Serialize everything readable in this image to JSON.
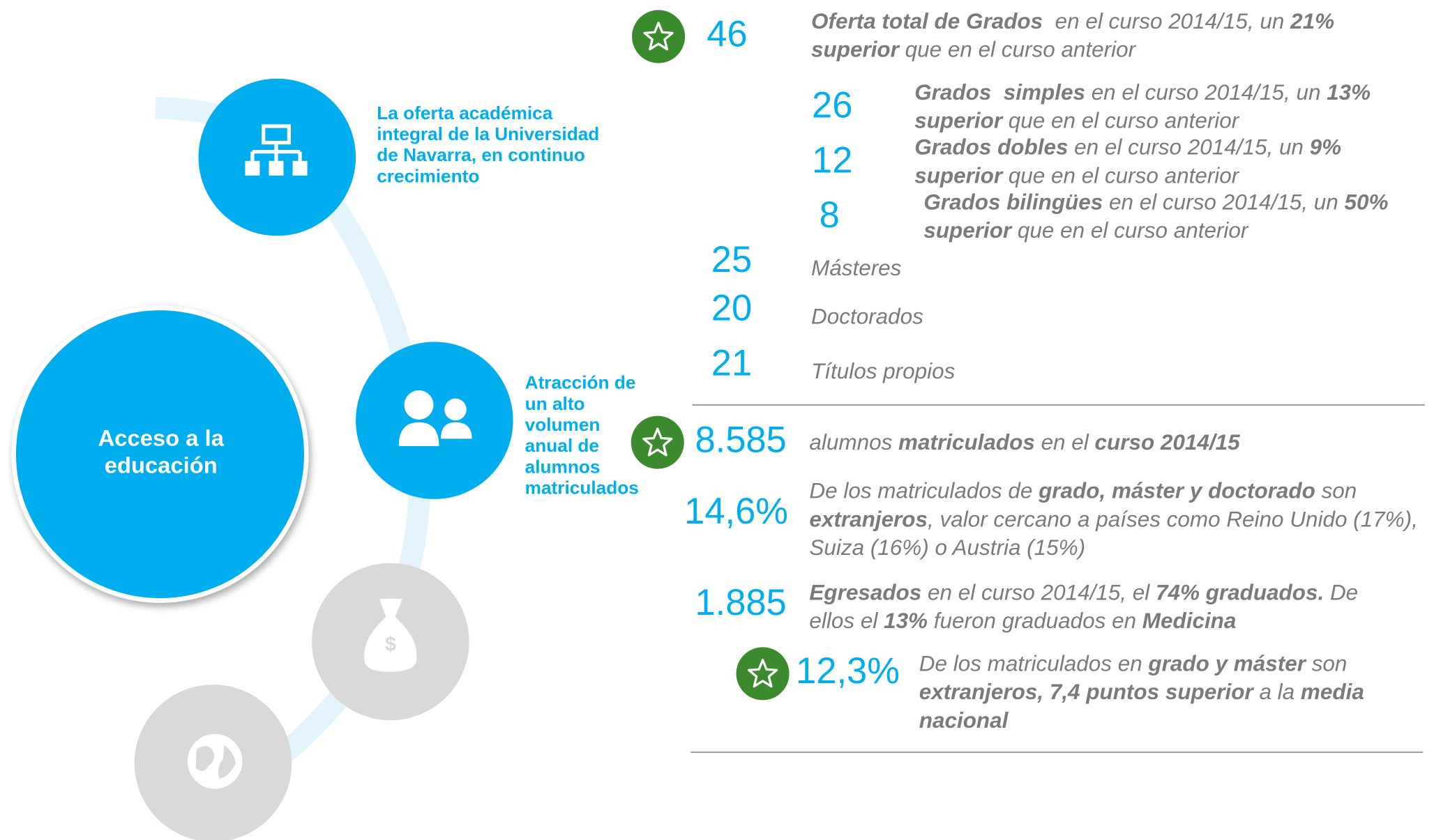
{
  "center": [
    "Acceso a la",
    "educación"
  ],
  "topics": [
    [
      "La oferta académica",
      "integral de la Universidad",
      "de Navarra, en continuo",
      "crecimiento"
    ],
    [
      "Atracción de",
      "un alto",
      "volumen",
      "anual de",
      "alumnos",
      "matriculados"
    ]
  ],
  "stats": [
    {
      "number": "46",
      "star": true,
      "lines": [
        [
          {
            "t": "Oferta total de Grados",
            "b": true
          },
          {
            "t": "  en el curso 2014/15, un ",
            "b": false
          },
          {
            "t": "21%",
            "b": true
          }
        ],
        [
          {
            "t": "superior",
            "b": true
          },
          {
            "t": " que en el curso anterior",
            "b": false
          }
        ]
      ]
    },
    {
      "number": "26",
      "star": false,
      "lines": [
        [
          {
            "t": "Grados  simples",
            "b": true
          },
          {
            "t": " en el curso 2014/15, un ",
            "b": false
          },
          {
            "t": "13%",
            "b": true
          }
        ],
        [
          {
            "t": "superior",
            "b": true
          },
          {
            "t": " que en el curso anterior",
            "b": false
          }
        ]
      ]
    },
    {
      "number": "12",
      "star": false,
      "lines": [
        [
          {
            "t": "Grados dobles",
            "b": true
          },
          {
            "t": " en el curso 2014/15, un ",
            "b": false
          },
          {
            "t": "9%",
            "b": true
          }
        ],
        [
          {
            "t": "superior",
            "b": true
          },
          {
            "t": " que en el curso anterior",
            "b": false
          }
        ]
      ]
    },
    {
      "number": "8",
      "star": false,
      "lines": [
        [
          {
            "t": "Grados bilingües",
            "b": true
          },
          {
            "t": " en el curso 2014/15, un ",
            "b": false
          },
          {
            "t": "50%",
            "b": true
          }
        ],
        [
          {
            "t": "superior",
            "b": true
          },
          {
            "t": " que en el curso anterior",
            "b": false
          }
        ]
      ]
    },
    {
      "number": "25",
      "star": false,
      "lines": [
        [
          {
            "t": "Másteres",
            "b": false
          }
        ]
      ]
    },
    {
      "number": "20",
      "star": false,
      "lines": [
        [
          {
            "t": "Doctorados",
            "b": false
          }
        ]
      ]
    },
    {
      "number": "21",
      "star": false,
      "lines": [
        [
          {
            "t": "Títulos propios",
            "b": false
          }
        ]
      ]
    },
    {
      "number": "8.585",
      "star": true,
      "lines": [
        [
          {
            "t": "alumnos ",
            "b": false
          },
          {
            "t": "matriculados",
            "b": true
          },
          {
            "t": " en el ",
            "b": false
          },
          {
            "t": "curso 2014/15",
            "b": true
          }
        ]
      ]
    },
    {
      "number": "14,6%",
      "star": false,
      "lines": [
        [
          {
            "t": "De los matriculados de ",
            "b": false
          },
          {
            "t": "grado, máster y doctorado",
            "b": true
          },
          {
            "t": " son",
            "b": false
          }
        ],
        [
          {
            "t": "extranjeros",
            "b": true
          },
          {
            "t": ", valor cercano a países como Reino Unido (17%),",
            "b": false
          }
        ],
        [
          {
            "t": "Suiza (16%) o Austria (15%)",
            "b": false
          }
        ]
      ]
    },
    {
      "number": "1.885",
      "star": false,
      "lines": [
        [
          {
            "t": "Egresados",
            "b": true
          },
          {
            "t": " en el curso 2014/15, el ",
            "b": false
          },
          {
            "t": "74% graduados.",
            "b": true
          },
          {
            "t": " De",
            "b": false
          }
        ],
        [
          {
            "t": "ellos el ",
            "b": false
          },
          {
            "t": "13%",
            "b": true
          },
          {
            "t": " fueron graduados en ",
            "b": false
          },
          {
            "t": "Medicina",
            "b": true
          }
        ]
      ]
    },
    {
      "number": "12,3%",
      "star": true,
      "lines": [
        [
          {
            "t": "De los matriculados en ",
            "b": false
          },
          {
            "t": "grado y máster",
            "b": true
          },
          {
            "t": " son",
            "b": false
          }
        ],
        [
          {
            "t": "extranjeros, 7,4 puntos superior",
            "b": true
          },
          {
            "t": " a la ",
            "b": false
          },
          {
            "t": "media",
            "b": true
          }
        ],
        [
          {
            "t": "nacional",
            "b": true
          }
        ]
      ]
    }
  ]
}
